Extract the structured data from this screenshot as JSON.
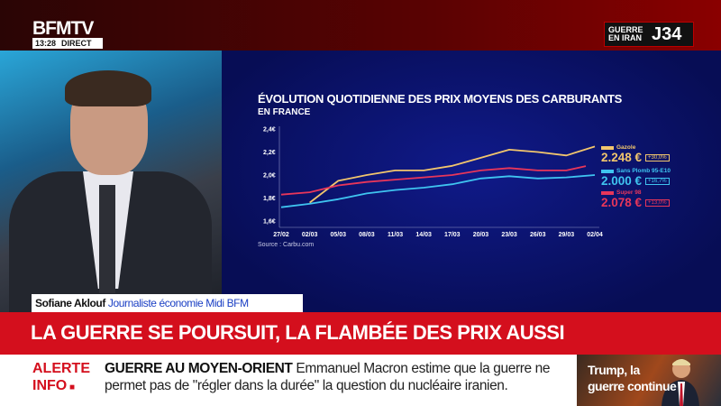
{
  "header": {
    "logo": "BFMTV",
    "time": "13:28",
    "live": "DIRECT",
    "badge_text": "GUERRE EN IRAN",
    "badge_day": "J34"
  },
  "chart_data": {
    "type": "line",
    "title": "ÉVOLUTION QUOTIDIENNE DES PRIX MOYENS DES CARBURANTS",
    "subtitle": "EN FRANCE",
    "source": "Source : Carbu.com",
    "x": [
      "27/02",
      "02/03",
      "05/03",
      "08/03",
      "11/03",
      "14/03",
      "17/03",
      "20/03",
      "23/03",
      "26/03",
      "29/03",
      "02/04"
    ],
    "yticks": [
      "1,6€",
      "1,8€",
      "2,0€",
      "2,2€",
      "2,4€"
    ],
    "ylim": [
      1.6,
      2.4
    ],
    "series": [
      {
        "name": "Gazole",
        "color": "#f2c66d",
        "values": [
          null,
          1.76,
          1.95,
          2.0,
          2.04,
          2.04,
          2.08,
          2.15,
          2.22,
          2.2,
          2.17,
          2.248
        ],
        "last": "2.248 €",
        "change": "+30,0%"
      },
      {
        "name": "Sans Plomb 95-E10",
        "color": "#3fc4f0",
        "values": [
          1.72,
          1.75,
          1.79,
          1.84,
          1.87,
          1.89,
          1.92,
          1.97,
          1.99,
          1.97,
          1.98,
          2.0
        ],
        "last": "2.000 €",
        "change": "+16,7%"
      },
      {
        "name": "Super 98",
        "color": "#e8365a",
        "values": [
          1.83,
          1.85,
          1.91,
          1.94,
          1.96,
          1.98,
          2.0,
          2.04,
          2.06,
          2.04,
          2.04,
          2.078
        ],
        "last": "2.078 €",
        "change": "+13,0%"
      }
    ]
  },
  "strap": {
    "name": "Sofiane Aklouf",
    "role": "Journaliste économie Midi BFM"
  },
  "headline": "LA GUERRE SE POURSUIT, LA FLAMBÉE DES PRIX AUSSI",
  "ticker": {
    "alert1": "ALERTE",
    "alert2": "INFO",
    "topic": "GUERRE AU MOYEN-ORIENT",
    "text": "Emmanuel Macron estime que la guerre ne permet pas de \"régler dans la durée\" la question du nucléaire iranien."
  },
  "thumbnail": {
    "caption": "Trump, la guerre continue"
  }
}
